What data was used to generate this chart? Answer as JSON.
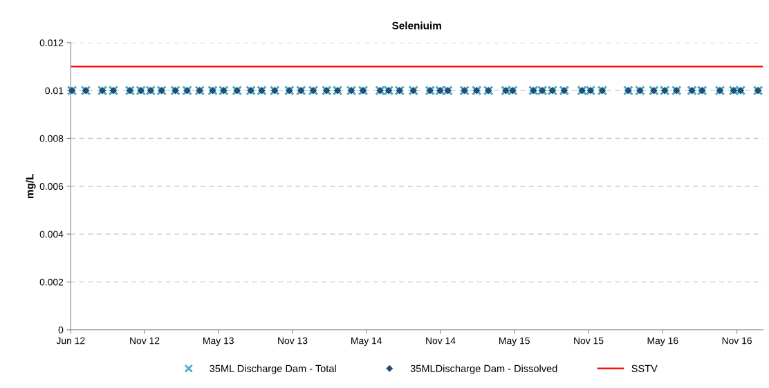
{
  "chart_data": {
    "type": "scatter",
    "title": "Seleniuim",
    "ylabel": "mg/L",
    "x": [
      "2012-06-04",
      "2012-07-08",
      "2012-08-18",
      "2012-09-14",
      "2012-10-25",
      "2012-11-21",
      "2012-12-15",
      "2013-01-11",
      "2013-02-14",
      "2013-03-15",
      "2013-04-15",
      "2013-05-17",
      "2013-06-13",
      "2013-07-16",
      "2013-08-19",
      "2013-09-15",
      "2013-10-17",
      "2013-11-22",
      "2013-12-21",
      "2014-01-20",
      "2014-02-22",
      "2014-03-21",
      "2014-04-24",
      "2014-05-23",
      "2014-07-04",
      "2014-07-25",
      "2014-08-21",
      "2014-09-24",
      "2014-11-04",
      "2014-11-29",
      "2014-12-18",
      "2015-01-28",
      "2015-02-27",
      "2015-03-28",
      "2015-05-10",
      "2015-05-27",
      "2015-07-17",
      "2015-08-08",
      "2015-09-02",
      "2015-10-01",
      "2015-11-14",
      "2015-12-05",
      "2016-01-03",
      "2016-03-07",
      "2016-04-05",
      "2016-05-09",
      "2016-06-05",
      "2016-07-04",
      "2016-08-11",
      "2016-09-05",
      "2016-10-19",
      "2016-11-22",
      "2016-12-09",
      "2017-01-21"
    ],
    "series": [
      {
        "name": "35ML Discharge Dam - Total",
        "color": "#4bacc6",
        "marker": "cross",
        "values": [
          0.01,
          0.01,
          0.01,
          0.01,
          0.01,
          0.01,
          0.01,
          0.01,
          0.01,
          0.01,
          0.01,
          0.01,
          0.01,
          0.01,
          0.01,
          0.01,
          0.01,
          0.01,
          0.01,
          0.01,
          0.01,
          0.01,
          0.01,
          0.01,
          0.01,
          0.01,
          0.01,
          0.01,
          0.01,
          0.01,
          0.01,
          0.01,
          0.01,
          0.01,
          0.01,
          0.01,
          0.01,
          0.01,
          0.01,
          0.01,
          0.01,
          0.01,
          0.01,
          0.01,
          0.01,
          0.01,
          0.01,
          0.01,
          0.01,
          0.01,
          0.01,
          0.01,
          0.01,
          0.01
        ]
      },
      {
        "name": "35MLDischarge Dam - Dissolved",
        "color": "#1f4e79",
        "marker": "diamond",
        "values": [
          0.01,
          0.01,
          0.01,
          0.01,
          0.01,
          0.01,
          0.01,
          0.01,
          0.01,
          0.01,
          0.01,
          0.01,
          0.01,
          0.01,
          0.01,
          0.01,
          0.01,
          0.01,
          0.01,
          0.01,
          0.01,
          0.01,
          0.01,
          0.01,
          0.01,
          0.01,
          0.01,
          0.01,
          0.01,
          0.01,
          0.01,
          0.01,
          0.01,
          0.01,
          0.01,
          0.01,
          0.01,
          0.01,
          0.01,
          0.01,
          0.01,
          0.01,
          0.01,
          0.01,
          0.01,
          0.01,
          0.01,
          0.01,
          0.01,
          0.01,
          0.01,
          0.01,
          0.01,
          0.01
        ]
      }
    ],
    "ref_lines": [
      {
        "axis": "y",
        "value": 0.011,
        "label": "SSTV",
        "color": "#ff0000",
        "line_style": "solid"
      }
    ],
    "xlim": [
      "2012-06-01",
      "2017-02-02"
    ],
    "xticks": [
      {
        "value": "2012-06-01",
        "label": "Jun 12"
      },
      {
        "value": "2012-11-30",
        "label": "Nov 12"
      },
      {
        "value": "2013-05-31",
        "label": "May 13"
      },
      {
        "value": "2013-11-30",
        "label": "Nov 13"
      },
      {
        "value": "2014-05-31",
        "label": "May 14"
      },
      {
        "value": "2014-11-30",
        "label": "Nov 14"
      },
      {
        "value": "2015-05-31",
        "label": "May 15"
      },
      {
        "value": "2015-11-30",
        "label": "Nov 15"
      },
      {
        "value": "2016-05-31",
        "label": "May 16"
      },
      {
        "value": "2016-11-30",
        "label": "Nov 16"
      }
    ],
    "ylim": [
      0,
      0.012
    ],
    "yticks": [
      0,
      0.002,
      0.004,
      0.006,
      0.008,
      0.01,
      0.012
    ],
    "grid": "y",
    "legend": "bottom"
  }
}
